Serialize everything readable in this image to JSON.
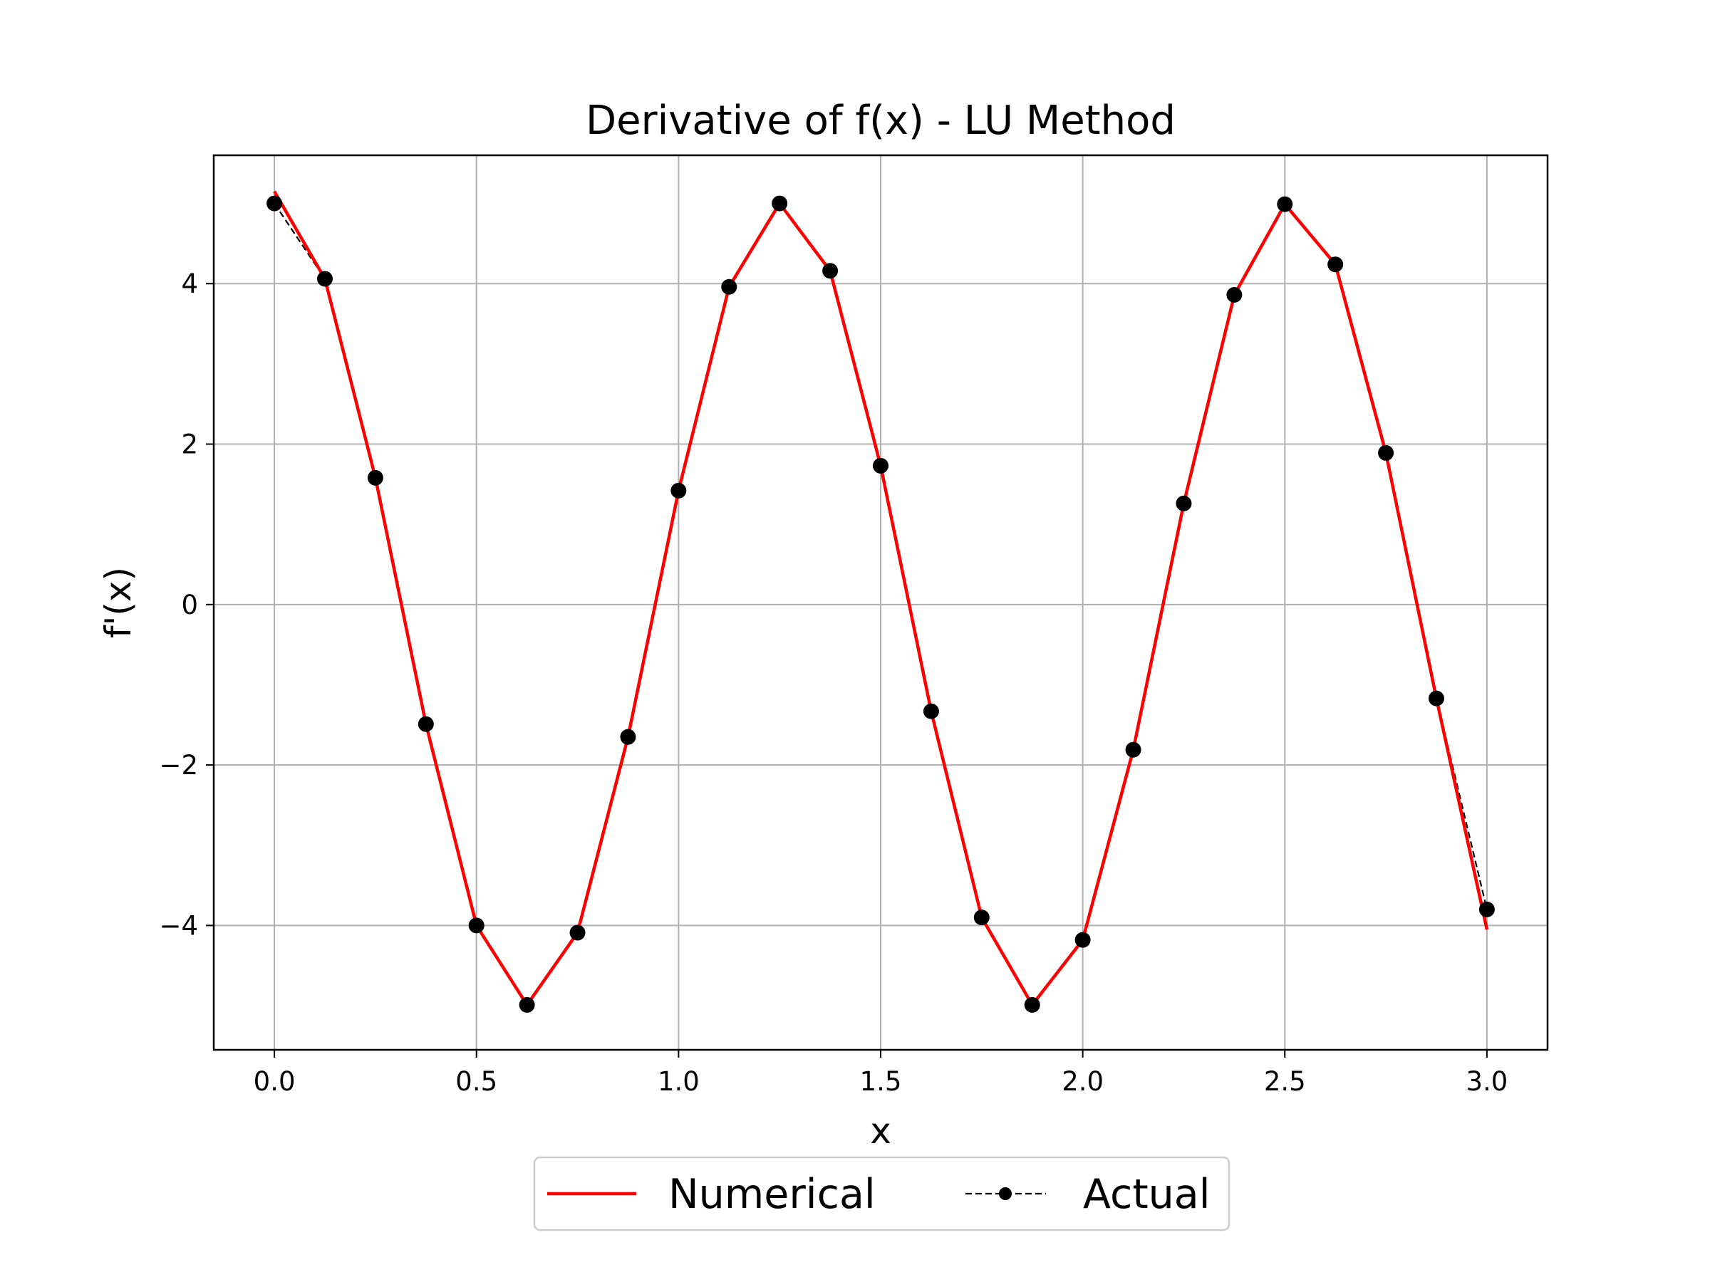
{
  "chart_data": {
    "type": "line",
    "title": "Derivative of f(x) - LU Method",
    "xlabel": "x",
    "ylabel": "f'(x)",
    "xlim": [
      -0.15,
      3.15
    ],
    "ylim": [
      -5.55,
      5.6
    ],
    "xticks": [
      0.0,
      0.5,
      1.0,
      1.5,
      2.0,
      2.5,
      3.0
    ],
    "xtick_labels": [
      "0.0",
      "0.5",
      "1.0",
      "1.5",
      "2.0",
      "2.5",
      "3.0"
    ],
    "yticks": [
      -4,
      -2,
      0,
      2,
      4
    ],
    "ytick_labels": [
      "−4",
      "−2",
      "0",
      "2",
      "4"
    ],
    "grid": true,
    "legend_position": "bottom-center",
    "series": [
      {
        "name": "Numerical",
        "color": "#ff0000",
        "style": "solid",
        "x": [
          0.0,
          0.125,
          0.25,
          0.375,
          0.5,
          0.625,
          0.75,
          0.875,
          1.0,
          1.125,
          1.25,
          1.375,
          1.5,
          1.625,
          1.75,
          1.875,
          2.0,
          2.125,
          2.25,
          2.375,
          2.5,
          2.625,
          2.75,
          2.875,
          3.0
        ],
        "y": [
          5.15,
          4.06,
          1.58,
          -1.49,
          -4.0,
          -4.99,
          -4.09,
          -1.65,
          1.42,
          3.96,
          5.0,
          4.16,
          1.73,
          -1.33,
          -3.9,
          -4.99,
          -4.18,
          -1.81,
          1.26,
          3.86,
          4.99,
          4.24,
          1.89,
          -1.17,
          -4.05
        ]
      },
      {
        "name": "Actual",
        "color": "#000000",
        "style": "dashed",
        "marker": "circle",
        "x": [
          0.0,
          0.125,
          0.25,
          0.375,
          0.5,
          0.625,
          0.75,
          0.875,
          1.0,
          1.125,
          1.25,
          1.375,
          1.5,
          1.625,
          1.75,
          1.875,
          2.0,
          2.125,
          2.25,
          2.375,
          2.5,
          2.625,
          2.75,
          2.875,
          3.0
        ],
        "y": [
          5.0,
          4.06,
          1.58,
          -1.49,
          -4.0,
          -4.99,
          -4.09,
          -1.65,
          1.42,
          3.96,
          5.0,
          4.16,
          1.73,
          -1.33,
          -3.9,
          -4.99,
          -4.18,
          -1.81,
          1.26,
          3.86,
          4.99,
          4.24,
          1.89,
          -1.17,
          -3.8
        ]
      }
    ]
  }
}
